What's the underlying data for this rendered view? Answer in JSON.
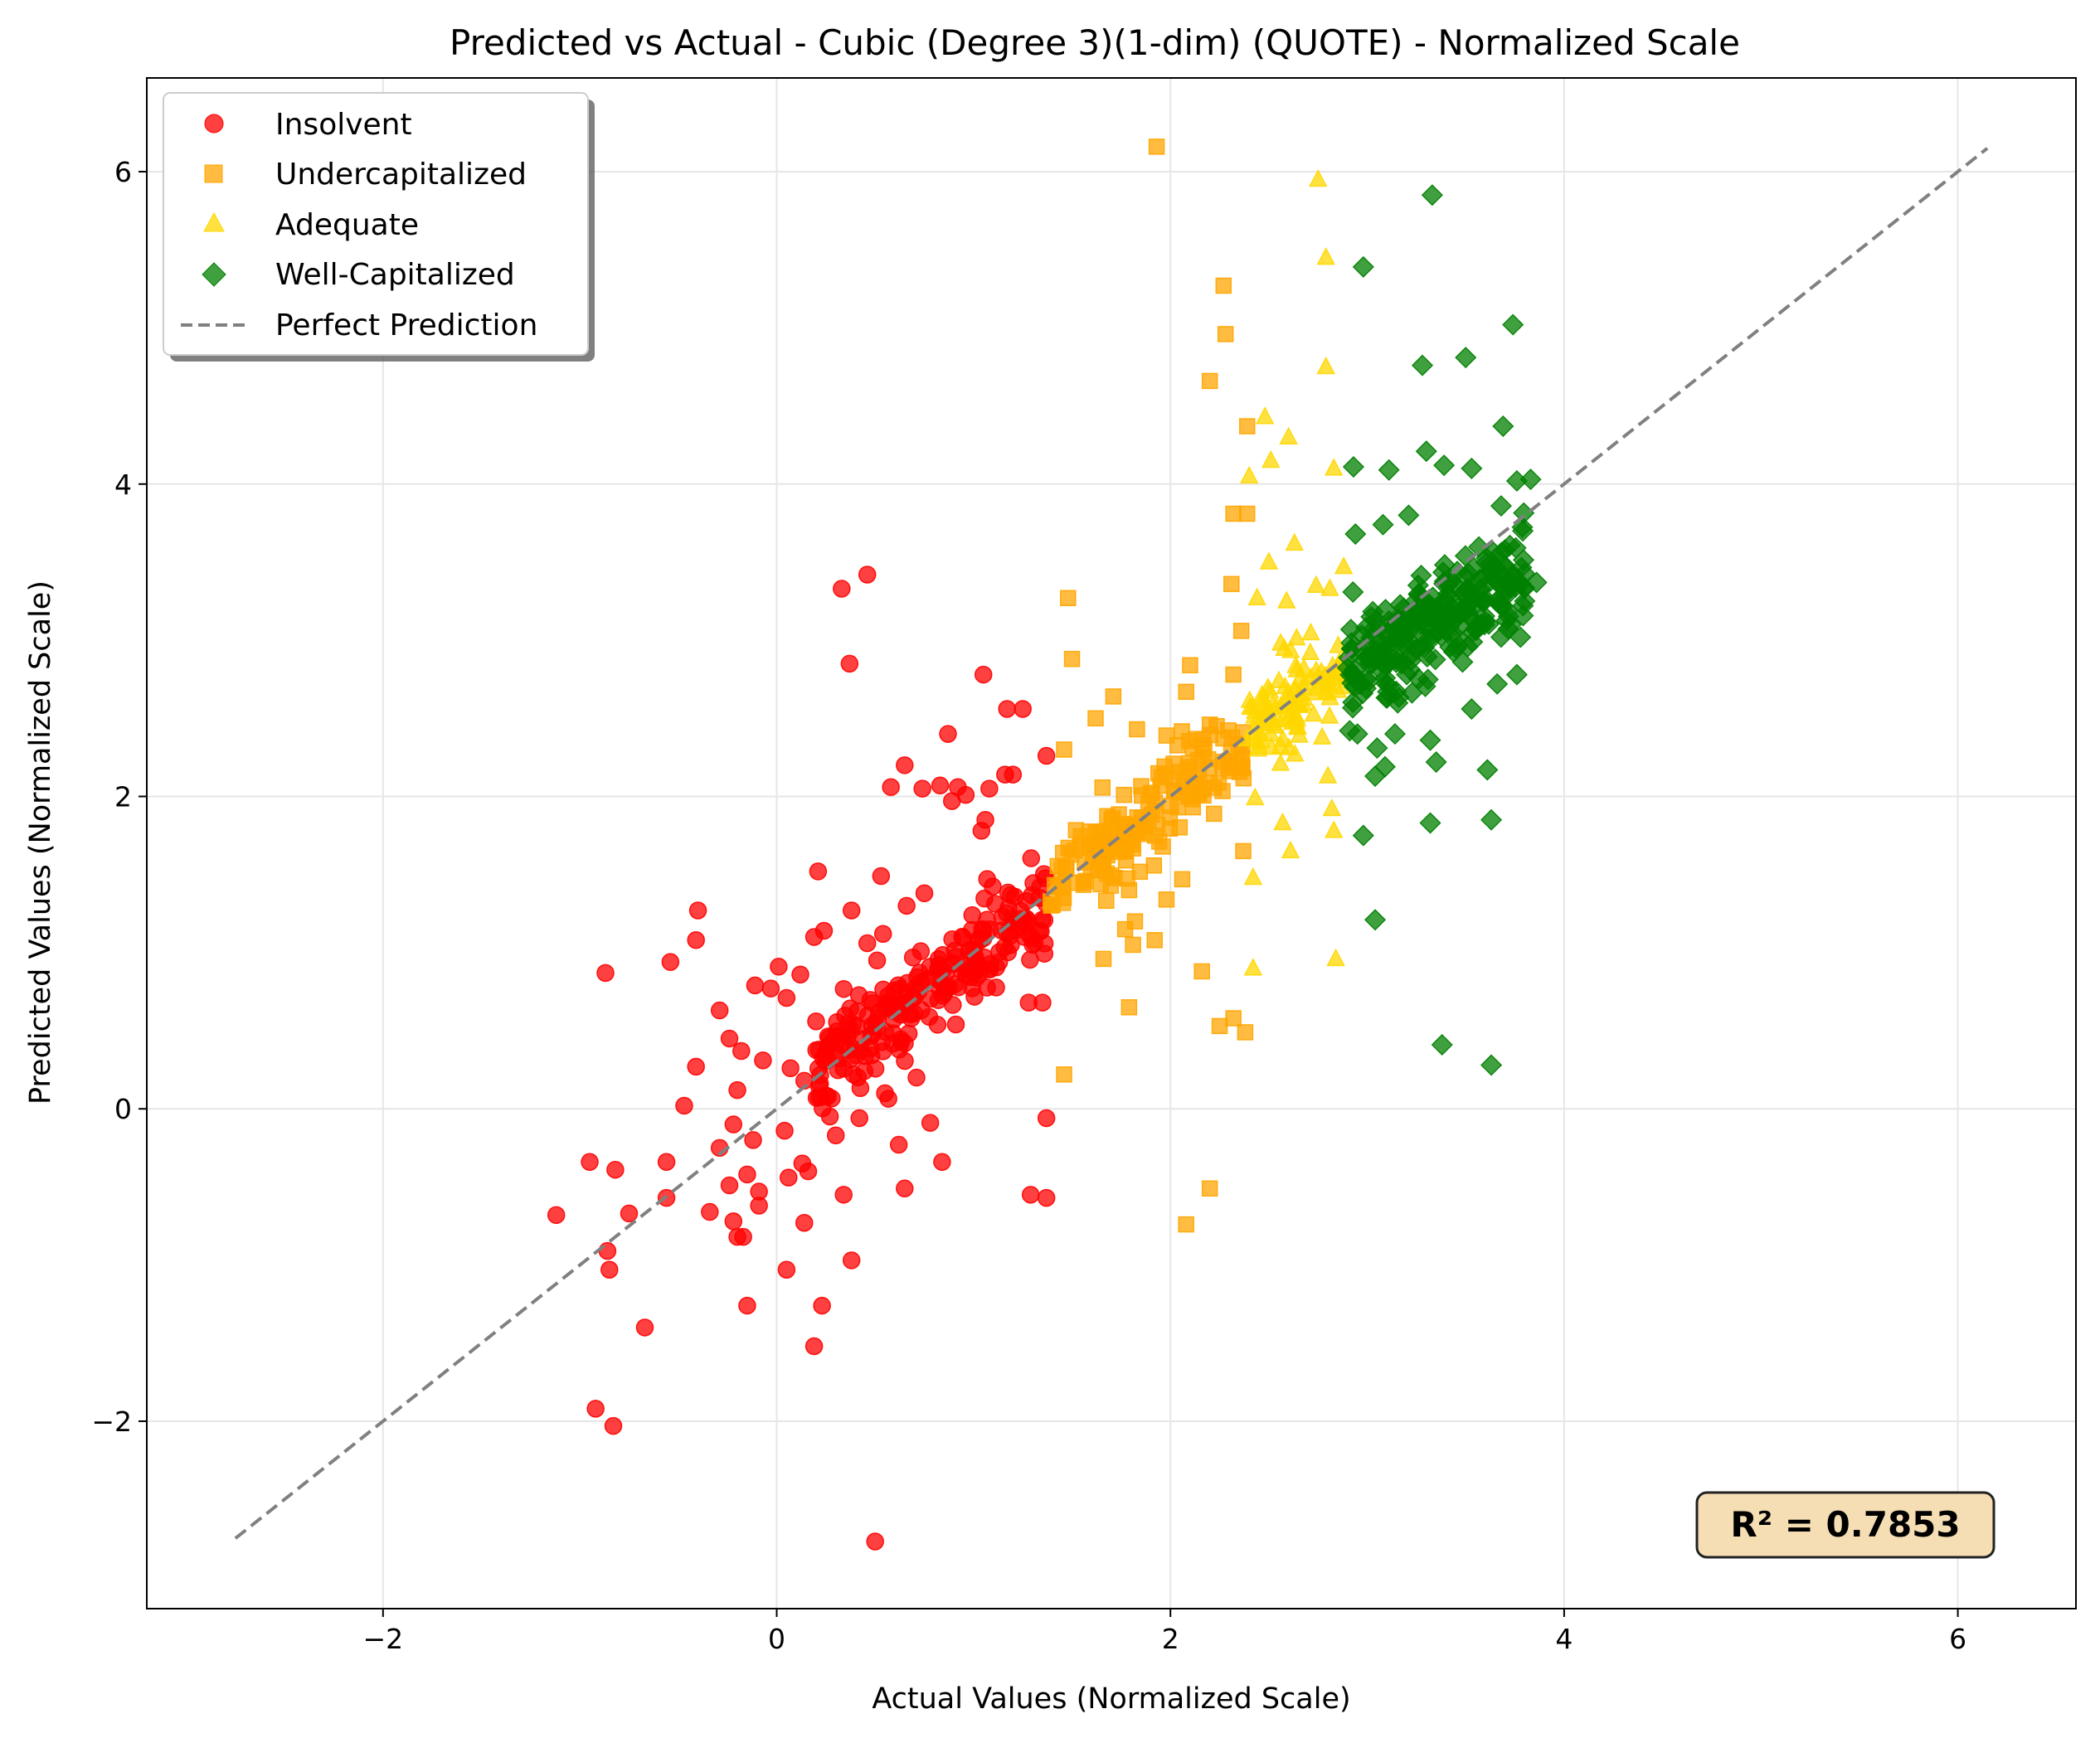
{
  "chart_data": {
    "type": "scatter",
    "title": "Predicted vs Actual - Cubic (Degree 3)(1-dim) (QUOTE) - Normalized Scale",
    "xlabel": "Actual Values (Normalized Scale)",
    "ylabel": "Predicted Values (Normalized Scale)",
    "xlim": [
      -3.2,
      6.6
    ],
    "ylim": [
      -3.2,
      6.6
    ],
    "xticks": [
      -2,
      0,
      2,
      4,
      6
    ],
    "yticks": [
      -2,
      0,
      2,
      4,
      6
    ],
    "grid": true,
    "legend_position": "top-left",
    "annotation": "R² = 0.7853",
    "reference_line": {
      "name": "Perfect Prediction",
      "x": [
        -2.75,
        6.15
      ],
      "y": [
        -2.75,
        6.15
      ],
      "color": "#808080",
      "dash": true
    },
    "series": [
      {
        "name": "Insolvent",
        "marker": "circle",
        "color": "#ff0000",
        "points": [
          [
            0.46,
            3.42
          ],
          [
            0.33,
            3.33
          ],
          [
            0.37,
            2.85
          ],
          [
            1.05,
            2.78
          ],
          [
            1.17,
            2.56
          ],
          [
            1.25,
            2.56
          ],
          [
            0.87,
            2.4
          ],
          [
            1.37,
            2.26
          ],
          [
            0.65,
            2.2
          ],
          [
            1.2,
            2.14
          ],
          [
            1.16,
            2.14
          ],
          [
            0.58,
            2.06
          ],
          [
            0.74,
            2.05
          ],
          [
            0.83,
            2.07
          ],
          [
            0.92,
            2.06
          ],
          [
            0.96,
            2.01
          ],
          [
            1.08,
            2.05
          ],
          [
            0.89,
            1.97
          ],
          [
            1.06,
            1.85
          ],
          [
            1.04,
            1.78
          ],
          [
            0.21,
            1.52
          ],
          [
            0.53,
            1.49
          ],
          [
            0.75,
            1.38
          ],
          [
            0.66,
            1.3
          ],
          [
            -0.4,
            1.27
          ],
          [
            0.38,
            1.27
          ],
          [
            0.19,
            1.1
          ],
          [
            0.24,
            1.14
          ],
          [
            -0.41,
            1.08
          ],
          [
            -0.54,
            0.94
          ],
          [
            -0.87,
            0.87
          ],
          [
            0.01,
            0.91
          ],
          [
            0.12,
            0.86
          ],
          [
            0.46,
            1.06
          ],
          [
            0.54,
            1.12
          ],
          [
            0.51,
            0.95
          ],
          [
            -0.11,
            0.79
          ],
          [
            -0.03,
            0.77
          ],
          [
            0.05,
            0.71
          ],
          [
            -0.29,
            0.63
          ],
          [
            0.2,
            0.56
          ],
          [
            0.33,
            0.47
          ],
          [
            0.58,
            0.68
          ],
          [
            0.91,
            0.54
          ],
          [
            0.72,
            0.75
          ],
          [
            0.85,
            0.79
          ],
          [
            1.01,
            0.88
          ],
          [
            1.13,
            0.94
          ],
          [
            1.19,
            1.05
          ],
          [
            1.28,
            0.68
          ],
          [
            1.35,
            0.68
          ],
          [
            -0.24,
            0.45
          ],
          [
            -0.41,
            0.27
          ],
          [
            -0.18,
            0.37
          ],
          [
            -0.07,
            0.31
          ],
          [
            0.07,
            0.26
          ],
          [
            0.14,
            0.18
          ],
          [
            0.26,
            0.08
          ],
          [
            0.39,
            0.22
          ],
          [
            0.55,
            0.1
          ],
          [
            0.71,
            0.2
          ],
          [
            0.78,
            -0.09
          ],
          [
            -0.47,
            0.02
          ],
          [
            -0.2,
            0.12
          ],
          [
            -0.29,
            -0.25
          ],
          [
            -0.22,
            -0.1
          ],
          [
            -0.12,
            -0.2
          ],
          [
            0.04,
            -0.14
          ],
          [
            0.13,
            -0.35
          ],
          [
            0.3,
            -0.17
          ],
          [
            0.42,
            -0.06
          ],
          [
            0.62,
            -0.23
          ],
          [
            0.84,
            -0.34
          ],
          [
            1.37,
            -0.06
          ],
          [
            1.29,
            -0.55
          ],
          [
            1.37,
            -0.57
          ],
          [
            -0.95,
            -0.34
          ],
          [
            -0.82,
            -0.39
          ],
          [
            -0.56,
            -0.34
          ],
          [
            -0.56,
            -0.57
          ],
          [
            -0.24,
            -0.49
          ],
          [
            -0.15,
            -0.42
          ],
          [
            -0.09,
            -0.53
          ],
          [
            0.06,
            -0.44
          ],
          [
            0.16,
            -0.4
          ],
          [
            0.34,
            -0.55
          ],
          [
            0.65,
            -0.51
          ],
          [
            -1.12,
            -0.68
          ],
          [
            -0.75,
            -0.67
          ],
          [
            -0.34,
            -0.66
          ],
          [
            -0.22,
            -0.72
          ],
          [
            -0.17,
            -0.82
          ],
          [
            -0.09,
            -0.62
          ],
          [
            0.14,
            -0.73
          ],
          [
            -0.86,
            -0.91
          ],
          [
            -0.85,
            -1.03
          ],
          [
            -0.67,
            -1.4
          ],
          [
            -0.2,
            -0.82
          ],
          [
            0.05,
            -1.03
          ],
          [
            0.38,
            -0.97
          ],
          [
            -0.15,
            -1.26
          ],
          [
            0.23,
            -1.26
          ],
          [
            0.19,
            -1.52
          ],
          [
            -0.92,
            -1.92
          ],
          [
            -0.83,
            -2.03
          ],
          [
            0.5,
            -2.77
          ]
        ],
        "cluster": {
          "x_range": [
            0.2,
            1.37
          ],
          "slope": 0.97,
          "intercept": 0.03,
          "spread": 0.16,
          "count": 220
        }
      },
      {
        "name": "Undercapitalized",
        "marker": "square",
        "color": "#ffa500",
        "points": [
          [
            1.93,
            6.16
          ],
          [
            2.27,
            5.27
          ],
          [
            2.28,
            4.96
          ],
          [
            2.2,
            4.66
          ],
          [
            2.39,
            4.37
          ],
          [
            2.32,
            3.81
          ],
          [
            2.39,
            3.81
          ],
          [
            2.31,
            3.36
          ],
          [
            1.48,
            3.27
          ],
          [
            1.5,
            2.88
          ],
          [
            2.36,
            3.06
          ],
          [
            2.1,
            2.84
          ],
          [
            2.32,
            2.78
          ],
          [
            1.71,
            2.64
          ],
          [
            1.62,
            2.5
          ],
          [
            1.83,
            2.43
          ],
          [
            1.46,
            2.3
          ],
          [
            1.98,
            2.39
          ],
          [
            2.08,
            2.67
          ],
          [
            2.2,
            2.46
          ],
          [
            1.86,
            1.76
          ],
          [
            2.37,
            1.65
          ],
          [
            1.66,
            1.55
          ],
          [
            1.56,
            1.45
          ],
          [
            1.79,
            1.4
          ],
          [
            1.98,
            1.34
          ],
          [
            2.06,
            1.47
          ],
          [
            1.77,
            1.15
          ],
          [
            1.81,
            1.05
          ],
          [
            1.82,
            1.2
          ],
          [
            1.92,
            1.08
          ],
          [
            1.66,
            0.96
          ],
          [
            1.79,
            0.65
          ],
          [
            2.16,
            0.88
          ],
          [
            2.25,
            0.53
          ],
          [
            2.32,
            0.58
          ],
          [
            2.38,
            0.49
          ],
          [
            1.46,
            0.22
          ],
          [
            2.2,
            -0.51
          ],
          [
            2.08,
            -0.74
          ]
        ],
        "cluster": {
          "x_range": [
            1.38,
            2.38
          ],
          "slope": 0.95,
          "intercept": 0.08,
          "spread": 0.15,
          "count": 170
        }
      },
      {
        "name": "Adequate",
        "marker": "triangle",
        "color": "#ffd700",
        "points": [
          [
            2.75,
            5.95
          ],
          [
            2.79,
            5.45
          ],
          [
            2.79,
            4.75
          ],
          [
            2.48,
            4.43
          ],
          [
            2.6,
            4.3
          ],
          [
            2.51,
            4.15
          ],
          [
            2.4,
            4.05
          ],
          [
            2.83,
            4.1
          ],
          [
            2.63,
            3.62
          ],
          [
            2.5,
            3.5
          ],
          [
            2.74,
            3.35
          ],
          [
            2.44,
            3.27
          ],
          [
            2.88,
            3.47
          ],
          [
            2.59,
            3.25
          ],
          [
            2.81,
            3.33
          ],
          [
            2.56,
            2.98
          ],
          [
            2.8,
            2.13
          ],
          [
            2.43,
            1.99
          ],
          [
            2.82,
            1.92
          ],
          [
            2.57,
            1.83
          ],
          [
            2.42,
            1.48
          ],
          [
            2.61,
            1.65
          ],
          [
            2.83,
            1.78
          ],
          [
            2.42,
            0.9
          ],
          [
            2.84,
            0.96
          ]
        ],
        "cluster": {
          "x_range": [
            2.38,
            2.88
          ],
          "slope": 0.7,
          "intercept": 0.78,
          "spread": 0.14,
          "count": 110
        }
      },
      {
        "name": "Well-Capitalized",
        "marker": "diamond",
        "color": "#008000",
        "points": [
          [
            3.33,
            5.85
          ],
          [
            2.98,
            5.39
          ],
          [
            3.74,
            5.02
          ],
          [
            3.5,
            4.81
          ],
          [
            3.28,
            4.76
          ],
          [
            3.69,
            4.37
          ],
          [
            3.3,
            4.21
          ],
          [
            3.39,
            4.12
          ],
          [
            2.93,
            4.11
          ],
          [
            3.11,
            4.09
          ],
          [
            3.53,
            4.1
          ],
          [
            3.76,
            4.02
          ],
          [
            3.83,
            4.03
          ],
          [
            3.68,
            3.86
          ],
          [
            3.21,
            3.8
          ],
          [
            2.94,
            3.68
          ],
          [
            3.08,
            3.74
          ],
          [
            3.79,
            3.7
          ],
          [
            3.86,
            3.37
          ],
          [
            3.73,
            3.1
          ],
          [
            3.68,
            3.02
          ],
          [
            2.95,
            2.4
          ],
          [
            3.05,
            2.31
          ],
          [
            3.04,
            2.13
          ],
          [
            3.09,
            2.19
          ],
          [
            3.35,
            2.22
          ],
          [
            3.32,
            2.36
          ],
          [
            3.53,
            2.56
          ],
          [
            3.76,
            2.78
          ],
          [
            3.66,
            2.72
          ],
          [
            2.98,
            1.75
          ],
          [
            3.32,
            1.83
          ],
          [
            3.63,
            1.85
          ],
          [
            3.61,
            2.17
          ],
          [
            3.04,
            1.21
          ],
          [
            3.38,
            0.41
          ],
          [
            3.63,
            0.28
          ]
        ],
        "cluster": {
          "x_range": [
            2.9,
            3.8
          ],
          "slope": 0.65,
          "intercept": 0.95,
          "spread": 0.18,
          "count": 260
        }
      }
    ]
  }
}
